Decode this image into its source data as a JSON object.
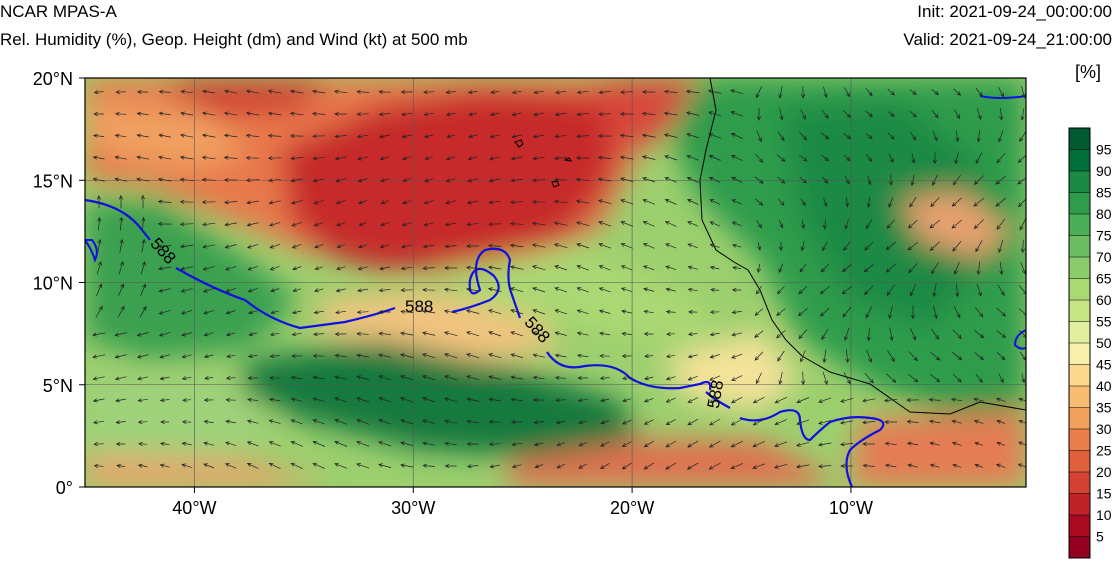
{
  "header": {
    "model": "NCAR MPAS-A",
    "description": "Rel. Humidity (%), Geop. Height (dm) and Wind (kt) at 500 mb",
    "init": "Init: 2021-09-24_00:00:00",
    "valid": "Valid: 2021-09-24_21:00:00"
  },
  "map": {
    "lon_range": [
      -45,
      -2
    ],
    "lat_range": [
      0,
      20
    ],
    "x_ticks": [
      {
        "value": -40,
        "label": "40°W"
      },
      {
        "value": -30,
        "label": "30°W"
      },
      {
        "value": -20,
        "label": "20°W"
      },
      {
        "value": -10,
        "label": "10°W"
      }
    ],
    "y_ticks": [
      {
        "value": 20,
        "label": "20°N"
      },
      {
        "value": 15,
        "label": "15°N"
      },
      {
        "value": 10,
        "label": "10°N"
      },
      {
        "value": 5,
        "label": "5°N"
      },
      {
        "value": 0,
        "label": "0°"
      }
    ],
    "contour_label": "588",
    "contour_color": "#1010e0",
    "coastline_color": "#000000"
  },
  "colorbar": {
    "units": "[%]",
    "labels": [
      "95",
      "90",
      "85",
      "80",
      "75",
      "70",
      "65",
      "60",
      "55",
      "50",
      "45",
      "40",
      "35",
      "30",
      "25",
      "20",
      "15",
      "10",
      "5"
    ],
    "colors": [
      "#005a32",
      "#00703a",
      "#1a8a45",
      "#2f9c4c",
      "#4aad58",
      "#6cbd63",
      "#8ccb6b",
      "#aad873",
      "#c6e483",
      "#e2ef9e",
      "#f6f0aa",
      "#fbd88d",
      "#f8bd73",
      "#f2a05d",
      "#ea7f4c",
      "#e0603e",
      "#d34233",
      "#bf2329",
      "#a80b22",
      "#940020"
    ]
  }
}
